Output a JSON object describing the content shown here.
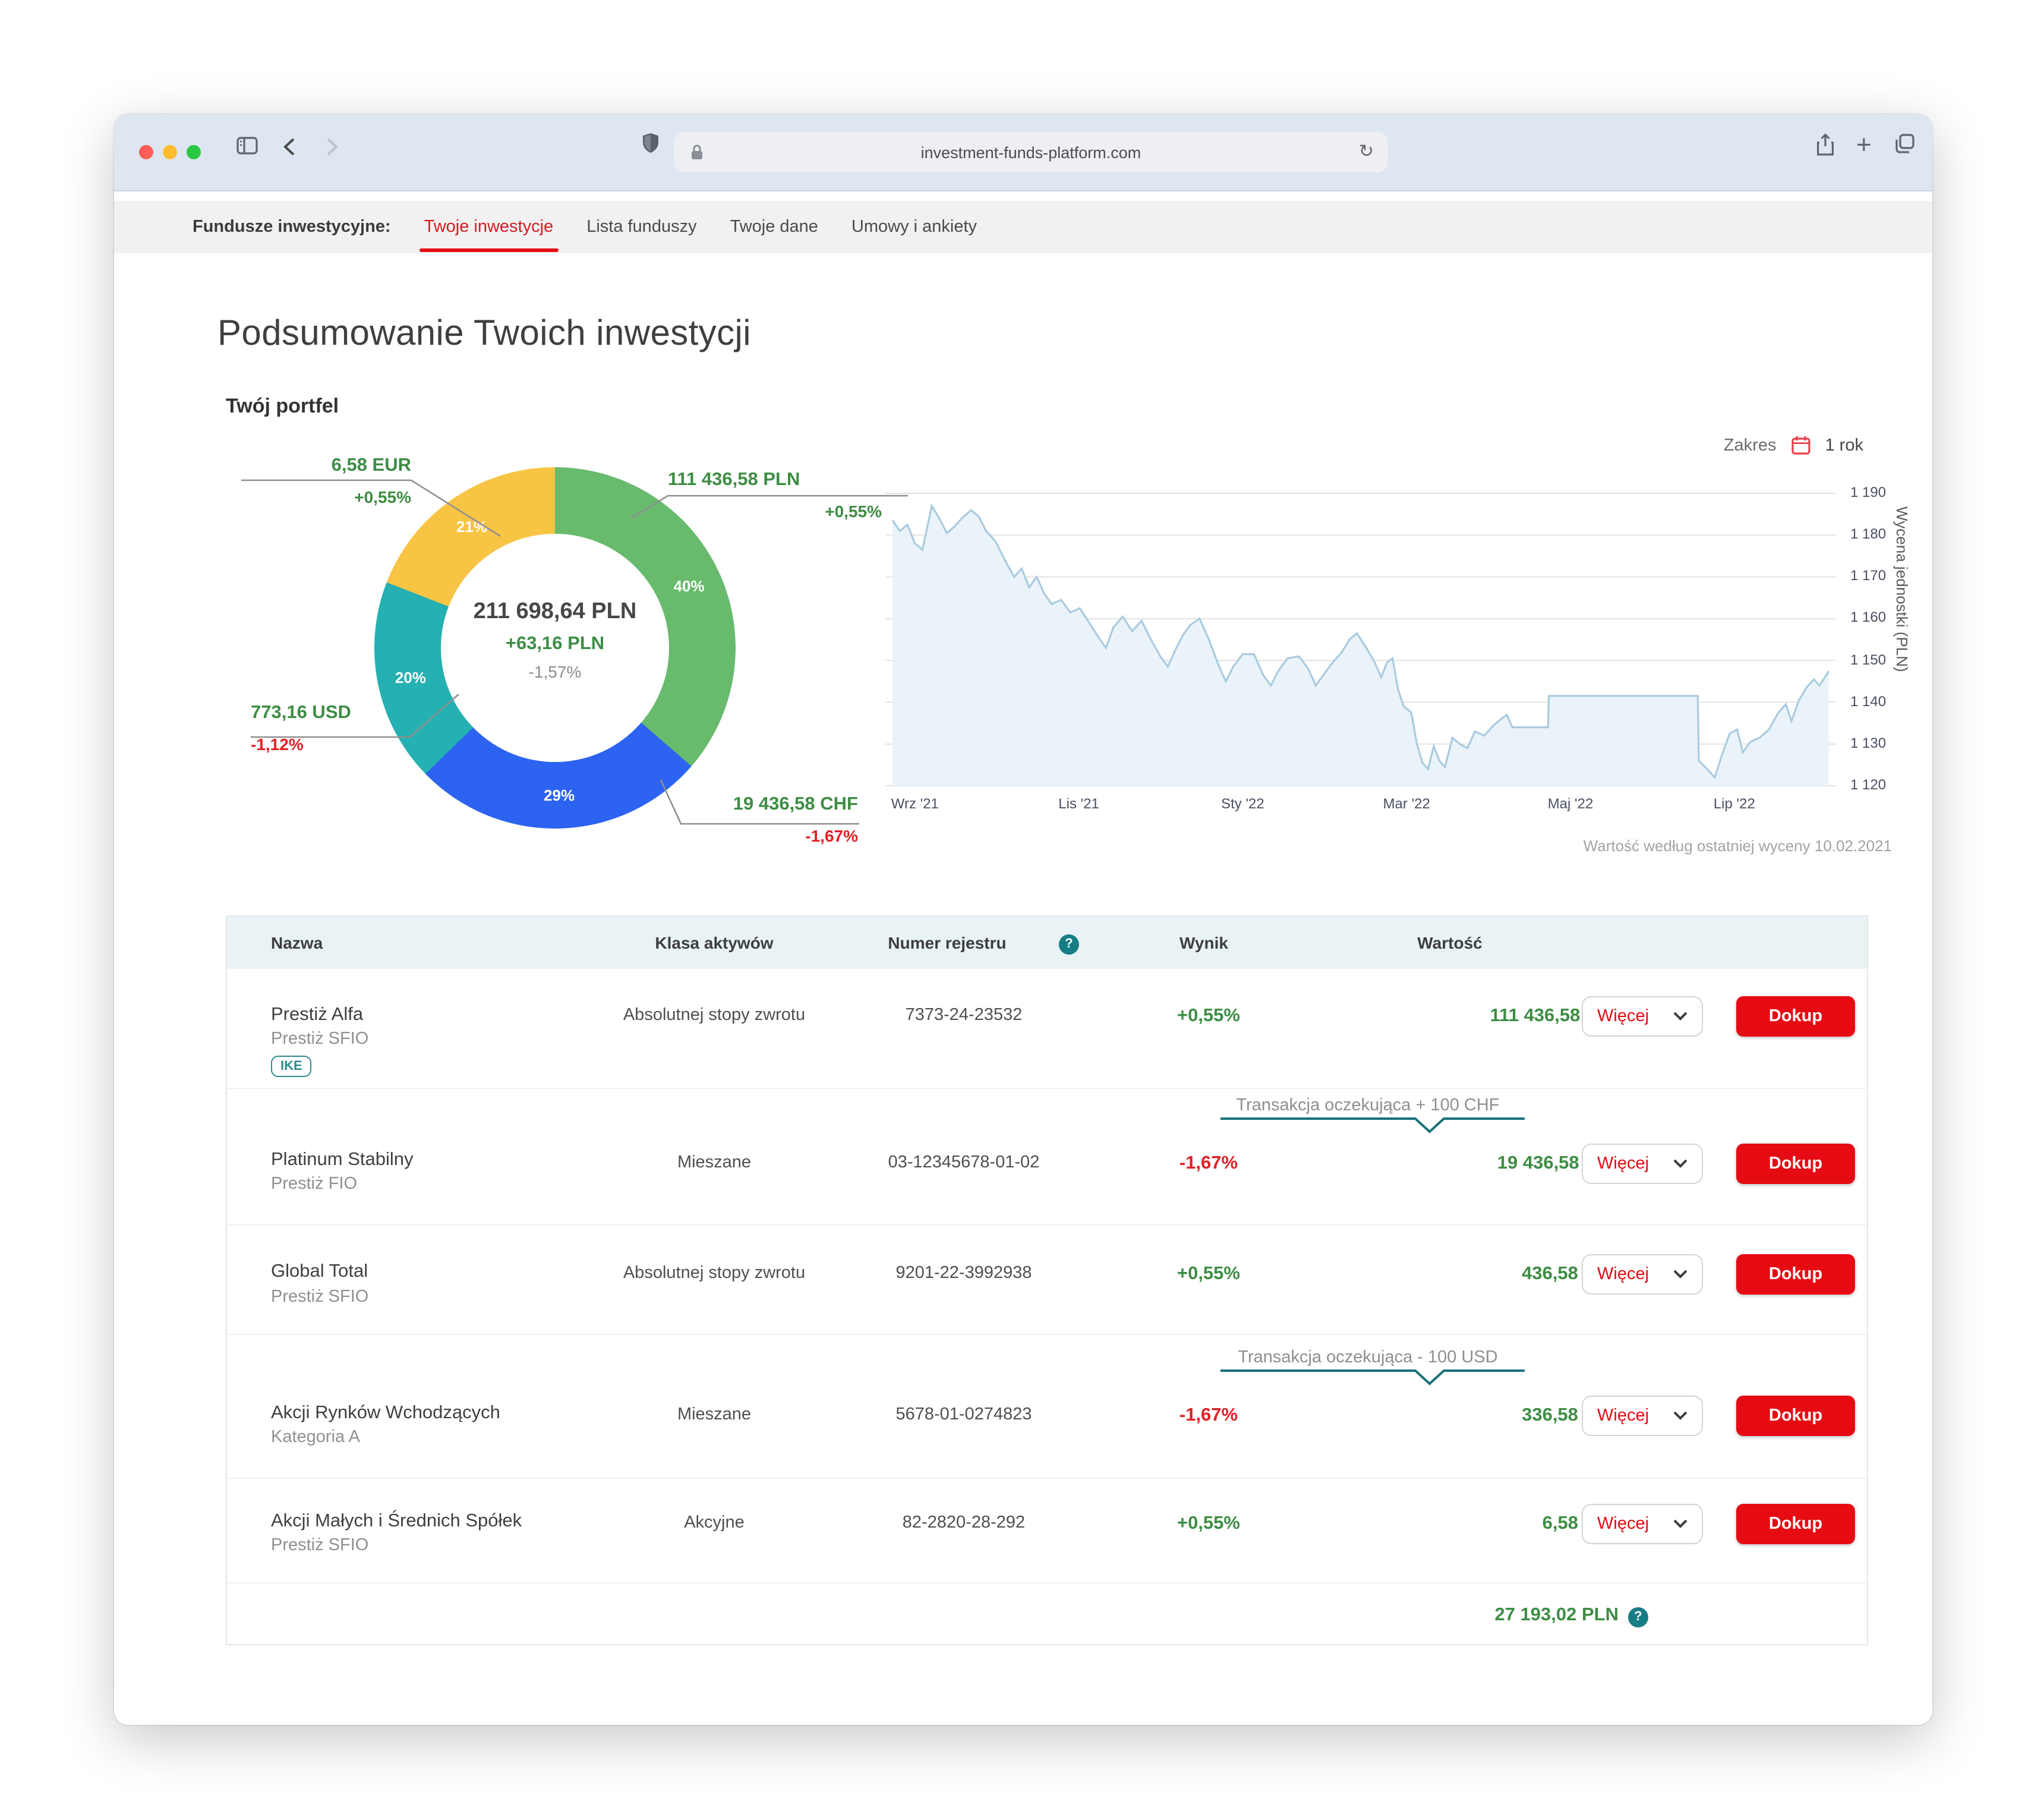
{
  "browser": {
    "url": "investment-funds-platform.com",
    "traffic_lights": [
      "#ff5f57",
      "#febc2e",
      "#28c840"
    ]
  },
  "icons": {
    "help": "?",
    "reload": "↻",
    "plus": "+"
  },
  "colors": {
    "accent_red": "#e60b13",
    "positive_green": "#3d8d44",
    "negative_red": "#e02126",
    "teal": "#177d85"
  },
  "nav": {
    "brand": "Fundusze inwestycyjne:",
    "items": [
      {
        "label": "Twoje inwestycje",
        "active": true
      },
      {
        "label": "Lista funduszy",
        "active": false
      },
      {
        "label": "Twoje dane",
        "active": false
      },
      {
        "label": "Umowy i ankiety",
        "active": false
      }
    ]
  },
  "page": {
    "title": "Podsumowanie Twoich inwestycji",
    "portfolio_heading": "Twój portfel"
  },
  "chart_data": [
    {
      "type": "pie",
      "title": "Twój portfel",
      "center_value": "211 698,64 PLN",
      "center_change": "+63,16 PLN",
      "center_percent": "-1,57%",
      "segments": [
        {
          "pct_label": "40%",
          "value": 40,
          "color": "#68ba6d",
          "amount": "111 436,58 PLN",
          "change": "+0,55%",
          "direction": "up"
        },
        {
          "pct_label": "29%",
          "value": 29,
          "color": "#2c63f1",
          "amount": "19 436,58 CHF",
          "change": "-1,67%",
          "direction": "down"
        },
        {
          "pct_label": "20%",
          "value": 20,
          "color": "#25b0b2",
          "amount": "773,16 USD",
          "change": "-1,12%",
          "direction": "down"
        },
        {
          "pct_label": "21%",
          "value": 21,
          "color": "#f8c443",
          "amount": "6,58 EUR",
          "change": "+0,55%",
          "direction": "up"
        }
      ]
    },
    {
      "type": "area",
      "range_label": "Zakres",
      "range_value": "1 rok",
      "ylabel": "Wycena jednostki (PLN)",
      "ylim": [
        1120,
        1190
      ],
      "yticks": [
        1190,
        1180,
        1170,
        1160,
        1150,
        1140,
        1130,
        1120
      ],
      "ytick_labels": [
        "1 190",
        "1 180",
        "1 170",
        "1 160",
        "1 150",
        "1 140",
        "1 130",
        "1 120"
      ],
      "x_labels": [
        "Wrz '21",
        "Lis '21",
        "Sty '22",
        "Mar '22",
        "Maj '22",
        "Lip '22"
      ],
      "x_label_pos": [
        2.4,
        19.9,
        37.4,
        54.9,
        72.4,
        89.9
      ],
      "grid": true,
      "line_color": "#a9cbdf",
      "fill_color": "#eaf3f9",
      "caption": "Wartość według ostatniej wyceny 10.02.2021",
      "series": [
        {
          "name": "Wycena jednostki (PLN)",
          "points": [
            [
              0,
              1183.5
            ],
            [
              0.8,
              1181
            ],
            [
              1.6,
              1182.5
            ],
            [
              2.4,
              1178
            ],
            [
              3.2,
              1176.5
            ],
            [
              4.2,
              1187
            ],
            [
              5,
              1184
            ],
            [
              5.8,
              1180.5
            ],
            [
              6.6,
              1182
            ],
            [
              7.4,
              1184
            ],
            [
              8.4,
              1186
            ],
            [
              9.2,
              1184.5
            ],
            [
              10,
              1181
            ],
            [
              11,
              1178.5
            ],
            [
              12,
              1174
            ],
            [
              13,
              1170
            ],
            [
              13.8,
              1172
            ],
            [
              14.6,
              1167.5
            ],
            [
              15.4,
              1170
            ],
            [
              16.2,
              1166
            ],
            [
              17,
              1163.5
            ],
            [
              18,
              1164.5
            ],
            [
              19,
              1161.5
            ],
            [
              20,
              1162.5
            ],
            [
              21,
              1159
            ],
            [
              22,
              1155.5
            ],
            [
              22.8,
              1153
            ],
            [
              23.6,
              1158
            ],
            [
              24.6,
              1160.5
            ],
            [
              25.6,
              1157
            ],
            [
              26.6,
              1159.5
            ],
            [
              27.6,
              1155
            ],
            [
              28.6,
              1151
            ],
            [
              29.4,
              1148.5
            ],
            [
              30.2,
              1152.5
            ],
            [
              31,
              1156
            ],
            [
              31.8,
              1158.5
            ],
            [
              32.8,
              1160
            ],
            [
              33.8,
              1155
            ],
            [
              34.8,
              1149
            ],
            [
              35.6,
              1145
            ],
            [
              36.4,
              1148.5
            ],
            [
              37.4,
              1151.5
            ],
            [
              38.6,
              1151.5
            ],
            [
              39.6,
              1146.5
            ],
            [
              40.4,
              1144
            ],
            [
              41.2,
              1147.5
            ],
            [
              42.2,
              1150.5
            ],
            [
              43.4,
              1151
            ],
            [
              44.4,
              1148
            ],
            [
              45.2,
              1144
            ],
            [
              46,
              1146.5
            ],
            [
              47,
              1149.5
            ],
            [
              48,
              1152
            ],
            [
              48.8,
              1155
            ],
            [
              49.6,
              1156.5
            ],
            [
              50.6,
              1153
            ],
            [
              51.4,
              1150
            ],
            [
              52.2,
              1146
            ],
            [
              52.8,
              1149.5
            ],
            [
              53.4,
              1150.5
            ],
            [
              54,
              1143
            ],
            [
              54.6,
              1139
            ],
            [
              55.4,
              1137.5
            ],
            [
              56,
              1130
            ],
            [
              56.6,
              1125.5
            ],
            [
              57.2,
              1124
            ],
            [
              57.8,
              1129.5
            ],
            [
              58.4,
              1126
            ],
            [
              59,
              1124.5
            ],
            [
              59.8,
              1131.5
            ],
            [
              60.6,
              1130
            ],
            [
              61.4,
              1129
            ],
            [
              62.2,
              1133
            ],
            [
              63.2,
              1132
            ],
            [
              64.2,
              1134.5
            ],
            [
              65,
              1136
            ],
            [
              65.6,
              1137
            ],
            [
              66.2,
              1134
            ],
            [
              67,
              1134
            ],
            [
              70,
              1134
            ],
            [
              70.1,
              1141.5
            ],
            [
              86,
              1141.5
            ],
            [
              86.1,
              1126
            ],
            [
              87,
              1124
            ],
            [
              87.8,
              1122
            ],
            [
              88.6,
              1127.5
            ],
            [
              89.4,
              1132.5
            ],
            [
              90.2,
              1133.5
            ],
            [
              90.8,
              1128
            ],
            [
              91.6,
              1130.5
            ],
            [
              92.6,
              1131.5
            ],
            [
              93.6,
              1133.5
            ],
            [
              94.6,
              1137.5
            ],
            [
              95.4,
              1139.5
            ],
            [
              96,
              1135.5
            ],
            [
              96.8,
              1140.5
            ],
            [
              97.6,
              1143.5
            ],
            [
              98.4,
              1145.5
            ],
            [
              99,
              1144
            ],
            [
              100,
              1147.5
            ]
          ]
        }
      ]
    }
  ],
  "table": {
    "headers": {
      "name": "Nazwa",
      "asset_class": "Klasa aktywów",
      "register": "Numer rejestru",
      "result": "Wynik",
      "value": "Wartość"
    },
    "more_label": "Więcej",
    "buy_label": "Dokup",
    "rows": [
      {
        "name": "Prestiż Alfa",
        "subname": "Prestiż SFIO",
        "badge": "IKE",
        "asset_class": "Absolutnej stopy zwrotu",
        "register": "7373-24-23532",
        "result": "+0,55%",
        "direction": "up",
        "value": "111 436,58 PLN"
      },
      {
        "name": "Platinum Stabilny",
        "subname": "Prestiż FIO",
        "badge": "",
        "asset_class": "Mieszane",
        "register": "03-12345678-01-02",
        "result": "-1,67%",
        "direction": "down",
        "value": "19 436,58 CHF"
      },
      {
        "name": "Global Total",
        "subname": "Prestiż SFIO",
        "badge": "",
        "asset_class": "Absolutnej stopy zwrotu",
        "register": "9201-22-3992938",
        "result": "+0,55%",
        "direction": "up",
        "value": "436,58 USD"
      },
      {
        "name": "Akcji Rynków Wchodzących",
        "subname": "Kategoria A",
        "badge": "",
        "asset_class": "Mieszane",
        "register": "5678-01-0274823",
        "result": "-1,67%",
        "direction": "down",
        "value": "336,58 USD"
      },
      {
        "name": "Akcji Małych i Średnich Spółek",
        "subname": "Prestiż SFIO",
        "badge": "",
        "asset_class": "Akcyjne",
        "register": "82-2820-28-292",
        "result": "+0,55%",
        "direction": "up",
        "value": "6,58 EUR"
      }
    ],
    "pending": [
      {
        "label": "Transakcja oczekująca + 100 CHF"
      },
      {
        "label": "Transakcja oczekująca - 100 USD"
      }
    ],
    "total": "27 193,02 PLN"
  }
}
